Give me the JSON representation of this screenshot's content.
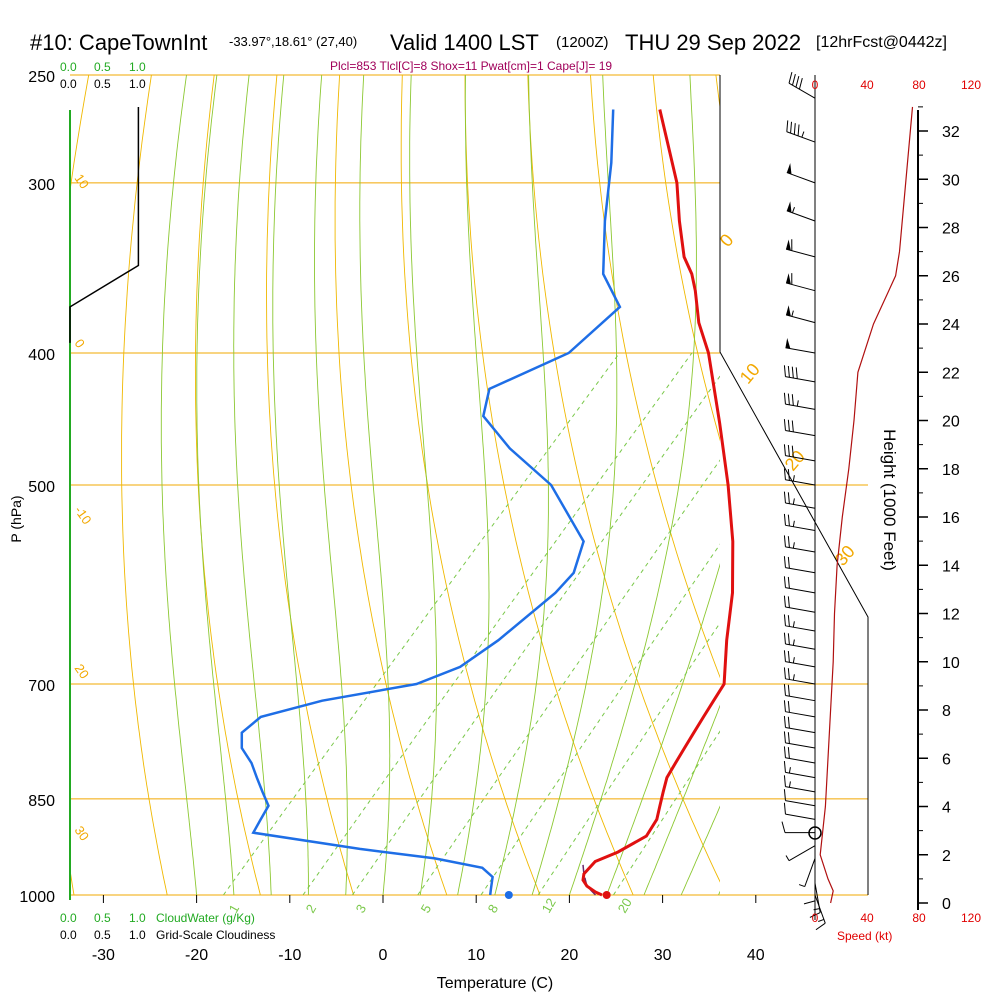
{
  "header": {
    "station": "#10: CapeTownInt",
    "coords": "-33.97°,18.61° (27,40)",
    "valid": "Valid 1400 LST",
    "zulu": "(1200Z)",
    "date": "THU 29 Sep 2022",
    "forecast": "[12hrFcst@0442z]",
    "indices": "Plcl=853 Tlcl[C]=8 Shox=11 Pwat[cm]=1 Cape[J]= 19"
  },
  "legend": {
    "cloudwater_ticks_green": [
      "0.0",
      "0.5",
      "1.0"
    ],
    "cloudiness_ticks_black": [
      "0.0",
      "0.5",
      "1.0"
    ],
    "cloudwater_label": "CloudWater (g/Kg)",
    "cloudiness_label": "Grid-Scale Cloudiness"
  },
  "colors": {
    "isobar": "#f2a800",
    "dry_adiabat": "#f0b800",
    "moist_adiabat": "#8cc832",
    "mixing_ratio": "#7ac84a",
    "temperature": "#e01010",
    "dewpoint": "#1e6ee6",
    "wind_speed": "#b01010",
    "index_text": "#a0005a",
    "label_red": "#e00000",
    "label_green": "#22aa22"
  },
  "chart_data": {
    "type": "line",
    "subtype": "skew-T log-P",
    "xlabel": "Temperature (C)",
    "ylabel": "P (hPa)",
    "right_ylabel": "Height (1000 Feet)",
    "wind_xlabel": "Speed (kt)",
    "x_ticks": [
      -30,
      -20,
      -10,
      0,
      10,
      20,
      30,
      40
    ],
    "p_ticks": [
      1000,
      850,
      700,
      500,
      400,
      300,
      250
    ],
    "height_ticks": [
      0,
      2,
      4,
      6,
      8,
      10,
      12,
      14,
      16,
      18,
      20,
      22,
      24,
      26,
      28,
      30,
      32
    ],
    "speed_ticks": [
      0,
      40,
      80,
      120
    ],
    "p_range": [
      250,
      1010
    ],
    "temperature": {
      "name": "Temperature",
      "p": [
        1000,
        995,
        985,
        975,
        965,
        945,
        930,
        905,
        880,
        860,
        840,
        820,
        800,
        780,
        760,
        740,
        720,
        700,
        650,
        600,
        550,
        500,
        450,
        400,
        380,
        360,
        350,
        340,
        320,
        300,
        280,
        265
      ],
      "t": [
        23.5,
        22.5,
        21,
        20,
        19.5,
        19.5,
        21,
        22.5,
        22,
        21,
        20,
        19,
        18.5,
        18,
        17.5,
        17,
        16.5,
        16,
        12,
        8,
        3,
        -3,
        -10,
        -18,
        -22,
        -25.5,
        -27.5,
        -30,
        -34,
        -38,
        -43,
        -47
      ]
    },
    "dewpoint": {
      "name": "Dewpoint",
      "p": [
        1000,
        990,
        970,
        955,
        940,
        925,
        900,
        880,
        860,
        840,
        820,
        800,
        780,
        760,
        740,
        720,
        700,
        680,
        650,
        600,
        580,
        550,
        500,
        470,
        445,
        425,
        400,
        370,
        350,
        320,
        290,
        265
      ],
      "t": [
        11.5,
        11,
        10,
        8,
        2,
        -7,
        -20,
        -20.5,
        -21,
        -23,
        -25,
        -27,
        -29.5,
        -31,
        -30.5,
        -25.5,
        -17,
        -14,
        -12.5,
        -11,
        -11,
        -13,
        -22,
        -30,
        -36,
        -38,
        -33,
        -32,
        -37,
        -42,
        -47,
        -52
      ]
    },
    "surface_points": {
      "temperature": 24,
      "dewpoint": 13.5
    },
    "parcel": {
      "name": "Parcel",
      "p": [
        1000,
        985,
        965,
        950
      ],
      "t": [
        22.8,
        21,
        19.5,
        18.5
      ]
    },
    "dry_adiabat_labels": [
      "30",
      "20",
      "10",
      "0",
      "-10",
      "-20",
      "-30"
    ],
    "moist_adiabat_labels": [
      "0",
      "10",
      "20",
      "30"
    ],
    "mixing_ratio_labels": [
      "1",
      "2",
      "3",
      "5",
      "8",
      "12",
      "20"
    ],
    "wind_speed": {
      "name": "Speed (kt)",
      "height_kft": [
        0,
        0.5,
        1,
        2,
        3,
        4,
        6,
        8,
        10,
        12,
        14,
        16,
        18,
        20,
        22,
        24,
        26,
        27,
        30,
        33
      ],
      "speed_kt": [
        12,
        14,
        10,
        4,
        6,
        8,
        10,
        12,
        14,
        15,
        17,
        21,
        26,
        30,
        33,
        45,
        62,
        65,
        70,
        75
      ]
    },
    "wind_barbs": {
      "p": [
        1000,
        980,
        960,
        940,
        920,
        900,
        880,
        860,
        840,
        820,
        800,
        780,
        760,
        740,
        720,
        700,
        680,
        660,
        640,
        620,
        600,
        580,
        560,
        540,
        520,
        500,
        480,
        460,
        440,
        420,
        400,
        380,
        360,
        340,
        320,
        300,
        280,
        260
      ],
      "speed_kt": [
        15,
        15,
        10,
        5,
        5,
        10,
        10,
        10,
        15,
        15,
        20,
        20,
        20,
        20,
        20,
        25,
        25,
        25,
        25,
        20,
        20,
        20,
        25,
        25,
        25,
        25,
        30,
        30,
        35,
        40,
        50,
        55,
        60,
        60,
        55,
        50,
        45,
        40
      ],
      "dir_deg": [
        160,
        170,
        180,
        200,
        240,
        270,
        280,
        280,
        280,
        280,
        280,
        280,
        280,
        280,
        280,
        280,
        280,
        280,
        280,
        280,
        280,
        280,
        280,
        280,
        280,
        280,
        280,
        280,
        280,
        280,
        280,
        285,
        285,
        285,
        290,
        290,
        290,
        300
      ]
    },
    "cloudiness_profile": {
      "p": [
        250,
        345,
        370
      ],
      "value": [
        0.95,
        0.95,
        0.0
      ]
    }
  }
}
